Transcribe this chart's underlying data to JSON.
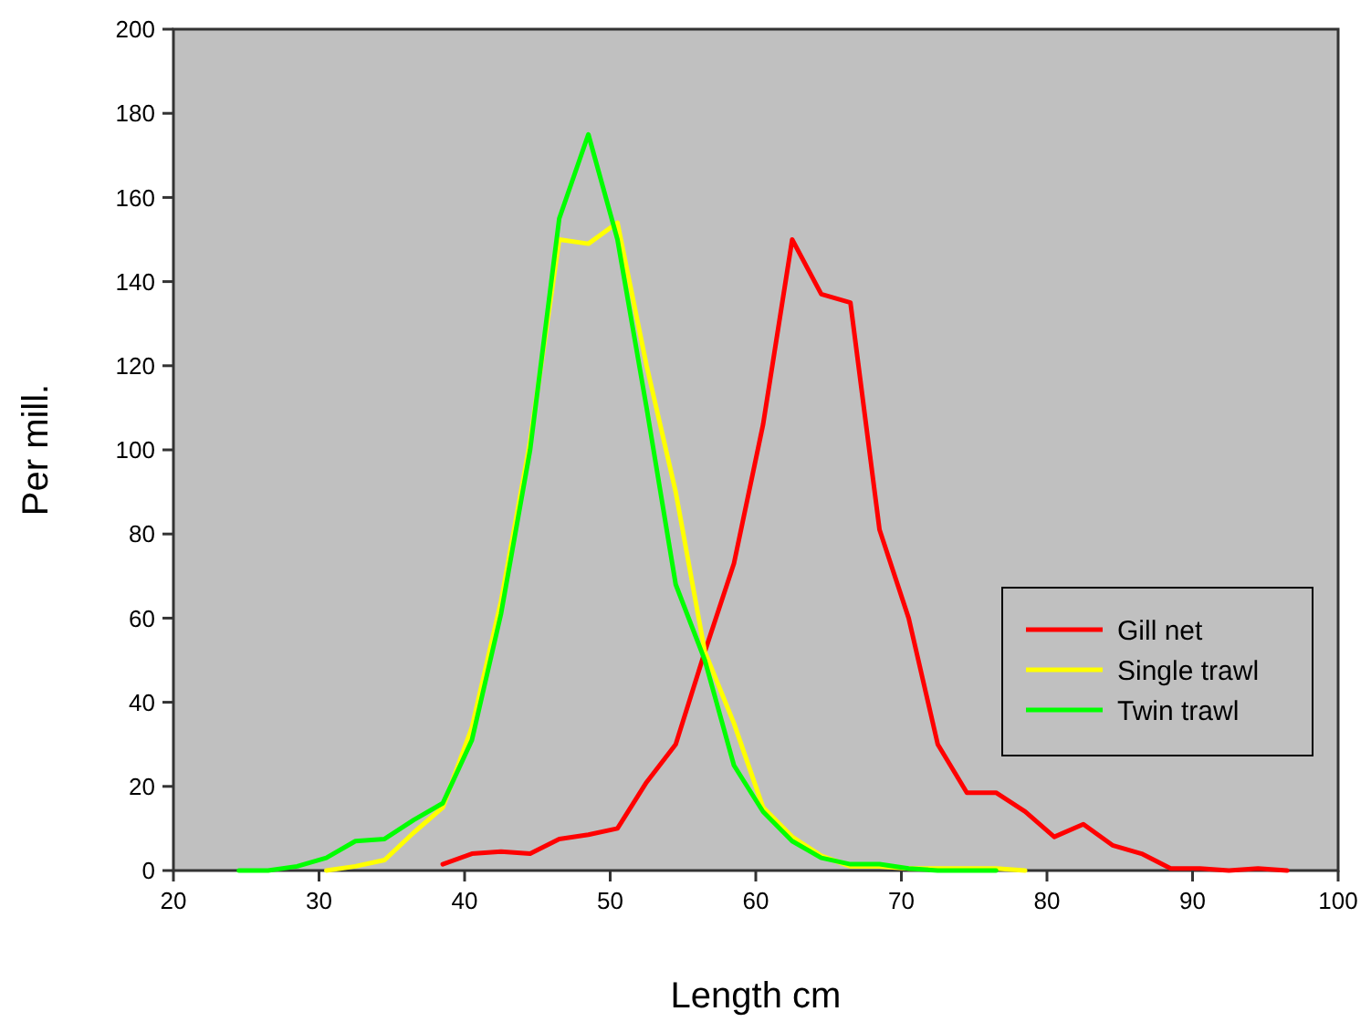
{
  "chart_data": {
    "type": "line",
    "xlabel": "Length cm",
    "ylabel": "Per mill.",
    "xlim": [
      20,
      100
    ],
    "xticks": [
      20,
      30,
      40,
      50,
      60,
      70,
      80,
      90,
      100
    ],
    "ylim": [
      0,
      200
    ],
    "yticks": [
      0,
      20,
      40,
      60,
      80,
      100,
      120,
      140,
      160,
      180,
      200
    ],
    "grid": false,
    "legend": "right",
    "marker": "none",
    "line_style": "solid",
    "series": [
      {
        "name": "Gill net",
        "color": "#ff0000",
        "x": [
          38.5,
          40.5,
          42.5,
          44.5,
          46.5,
          48.5,
          50.5,
          52.5,
          54.5,
          56.5,
          58.5,
          60.5,
          62.5,
          64.5,
          66.5,
          68.5,
          70.5,
          72.5,
          74.5,
          76.5,
          78.5,
          80.5,
          82.5,
          84.5,
          86.5,
          88.5,
          90.5,
          92.5,
          94.5,
          96.5
        ],
        "values": [
          1.5,
          4,
          4.5,
          4,
          7.5,
          8.5,
          10,
          21,
          30,
          52,
          73,
          106,
          150,
          137,
          135,
          81,
          60,
          30,
          18.5,
          18.5,
          14,
          8,
          11,
          6,
          4,
          0.5,
          0.5,
          0,
          0.5,
          0
        ]
      },
      {
        "name": "Single trawl",
        "color": "#ffff00",
        "x": [
          30.5,
          32.5,
          34.5,
          36.5,
          38.5,
          40.5,
          42.5,
          44.5,
          46.5,
          48.5,
          50.5,
          52.5,
          54.5,
          56.5,
          58.5,
          60.5,
          62.5,
          64.5,
          66.5,
          68.5,
          70.5,
          72.5,
          74.5,
          76.5,
          78.5
        ],
        "values": [
          0,
          1,
          2.5,
          9,
          15,
          34,
          64,
          102,
          150,
          149,
          154,
          120,
          90,
          52,
          35,
          15,
          8,
          3.5,
          1,
          1,
          0.5,
          0.5,
          0.5,
          0.5,
          0
        ]
      },
      {
        "name": "Twin trawl",
        "color": "#00ff00",
        "x": [
          24.5,
          26.5,
          28.5,
          30.5,
          32.5,
          34.5,
          36.5,
          38.5,
          40.5,
          42.5,
          44.5,
          46.5,
          48.5,
          50.5,
          52.5,
          54.5,
          56.5,
          58.5,
          60.5,
          62.5,
          64.5,
          66.5,
          68.5,
          70.5,
          72.5,
          74.5,
          76.5
        ],
        "values": [
          0,
          0,
          1,
          3,
          7,
          7.5,
          12,
          16,
          31,
          61,
          100,
          155,
          175,
          150,
          110,
          68,
          50,
          25,
          14,
          7,
          3,
          1.5,
          1.5,
          0.5,
          0,
          0,
          0
        ]
      }
    ]
  }
}
